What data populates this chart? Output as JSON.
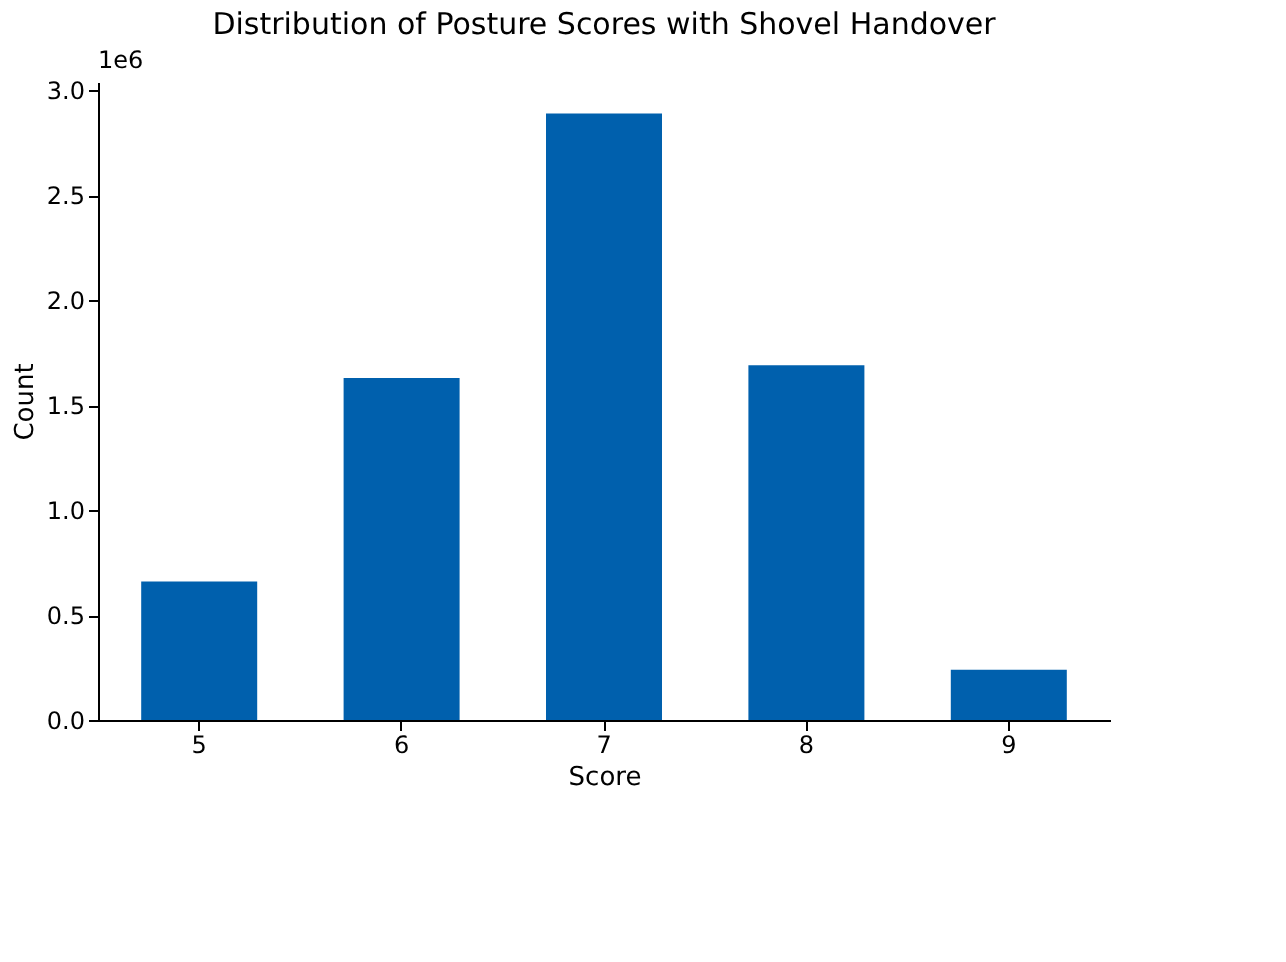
{
  "chart_data": {
    "type": "bar",
    "title": "Distribution of Posture Scores with Shovel Handover",
    "xlabel": "Score",
    "ylabel": "Count",
    "categories": [
      "5",
      "6",
      "7",
      "8",
      "9"
    ],
    "values": [
      0.66,
      1.63,
      2.89,
      1.69,
      0.24
    ],
    "color": "#0060ad",
    "ylim": [
      0,
      3.04
    ],
    "yticks": [
      {
        "value": 0,
        "label": "0.0"
      },
      0.5,
      {
        "value": 1,
        "label": "1.0"
      },
      1.5,
      {
        "value": 2,
        "label": "2.0"
      },
      2.5,
      {
        "value": 3,
        "label": "3.0"
      }
    ],
    "annotations": [
      "1e6"
    ],
    "grid": false
  }
}
